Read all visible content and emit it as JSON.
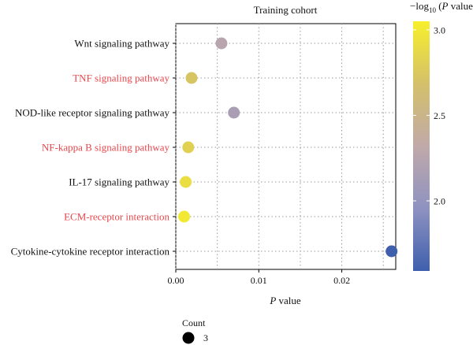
{
  "chart_data": {
    "type": "scatter",
    "title": "Training cohort",
    "xlabel_italic": "P",
    "xlabel_rest": " value",
    "xlim": [
      0,
      0.0265
    ],
    "x_ticks": [
      0.0,
      0.01,
      0.02
    ],
    "x_tick_labels": [
      "0.00",
      "0.01",
      "0.02"
    ],
    "categories": [
      "Wnt signaling pathway",
      "TNF signaling pathway",
      "NOD-like receptor signaling pathway",
      "NF-kappa B signaling pathway",
      "IL-17 signaling pathway",
      "ECM-receptor interaction",
      "Cytokine-cytokine receptor interaction"
    ],
    "highlighted": [
      false,
      true,
      false,
      true,
      false,
      true,
      false
    ],
    "highlight_color": "#e8474c",
    "points": [
      {
        "pathway": "Wnt signaling pathway",
        "p_value": 0.0055,
        "neg_log10_p": 2.26,
        "count": 3
      },
      {
        "pathway": "TNF signaling pathway",
        "p_value": 0.0019,
        "neg_log10_p": 2.72,
        "count": 3
      },
      {
        "pathway": "NOD-like receptor signaling pathway",
        "p_value": 0.007,
        "neg_log10_p": 2.15,
        "count": 3
      },
      {
        "pathway": "NF-kappa B signaling pathway",
        "p_value": 0.0015,
        "neg_log10_p": 2.82,
        "count": 3
      },
      {
        "pathway": "IL-17 signaling pathway",
        "p_value": 0.0012,
        "neg_log10_p": 2.92,
        "count": 3
      },
      {
        "pathway": "ECM-receptor interaction",
        "p_value": 0.001,
        "neg_log10_p": 3.0,
        "count": 3
      },
      {
        "pathway": "Cytokine-cytokine receptor interaction",
        "p_value": 0.026,
        "neg_log10_p": 1.59,
        "count": 3
      }
    ],
    "colorbar": {
      "title_prefix": "−log",
      "title_sub": "10",
      "title_open": " (",
      "title_italic": "P",
      "title_close": " value)",
      "range": [
        1.59,
        3.05
      ],
      "ticks": [
        2.0,
        2.5,
        3.0
      ],
      "tick_labels": [
        "2.0",
        "2.5",
        "3.0"
      ],
      "colors": [
        "#3f5fad",
        "#8e92c1",
        "#c0a9a9",
        "#d4c06a",
        "#f7ef2c"
      ]
    },
    "size_legend": {
      "title": "Count",
      "values": [
        3
      ],
      "labels": [
        "3"
      ]
    },
    "grid": true,
    "grid_style": "dotted"
  }
}
